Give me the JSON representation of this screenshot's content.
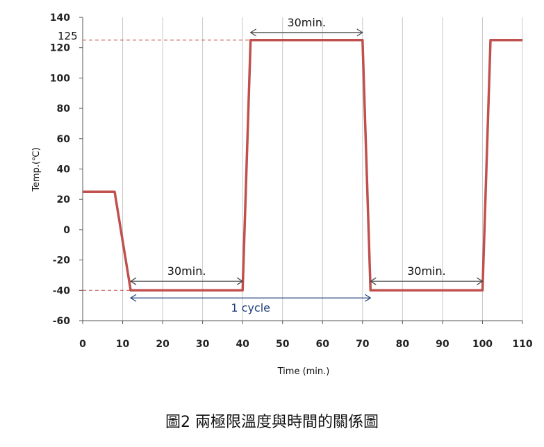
{
  "caption": "圖2 兩極限溫度與時間的關係圖",
  "chart_data": {
    "type": "line",
    "title": "",
    "xlabel": "Time (min.)",
    "ylabel": "Temp.(℃)",
    "xlim": [
      0,
      110
    ],
    "ylim": [
      -60,
      140
    ],
    "x_ticks": [
      0,
      10,
      20,
      30,
      40,
      50,
      60,
      70,
      80,
      90,
      100,
      110
    ],
    "y_ticks": [
      -60,
      -40,
      -20,
      0,
      20,
      40,
      60,
      80,
      100,
      120,
      140
    ],
    "grid": "vertical",
    "series": [
      {
        "color": "#c0504d",
        "points": [
          [
            0,
            25
          ],
          [
            8,
            25
          ],
          [
            12,
            -40
          ],
          [
            40,
            -40
          ],
          [
            42,
            125
          ],
          [
            70,
            125
          ],
          [
            72,
            -40
          ],
          [
            100,
            -40
          ],
          [
            102,
            125
          ],
          [
            110,
            125
          ]
        ]
      }
    ],
    "reference_lines": [
      {
        "y": 125,
        "x_end": 42,
        "label": "125",
        "color": "#c0504d"
      },
      {
        "y": -40,
        "x_end": 12,
        "color": "#c0504d"
      }
    ],
    "annotations": [
      {
        "label": "30min.",
        "x1": 42,
        "x2": 70,
        "y": 130,
        "color": "#444444"
      },
      {
        "label": "30min.",
        "x1": 12,
        "x2": 40,
        "y": -34,
        "color": "#444444"
      },
      {
        "label": "30min.",
        "x1": 72,
        "x2": 100,
        "y": -34,
        "color": "#444444"
      },
      {
        "label": "1 cycle",
        "x1": 12,
        "x2": 72,
        "y": -45,
        "color": "#1f3f7a"
      }
    ]
  }
}
